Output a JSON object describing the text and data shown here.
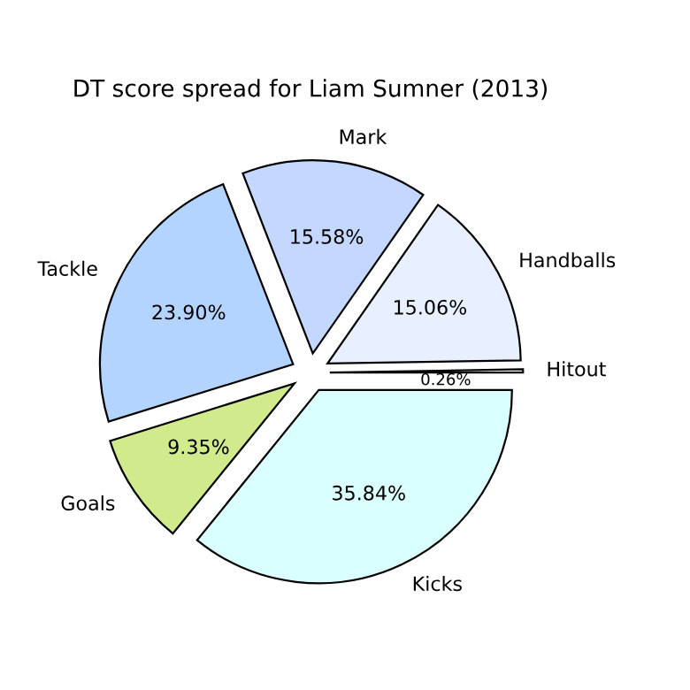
{
  "chart_data": {
    "type": "pie",
    "title": "DT score spread for Liam Sumner (2013)",
    "categories": [
      "Hitout",
      "Handballs",
      "Mark",
      "Tackle",
      "Goals",
      "Kicks"
    ],
    "values": [
      0.26,
      15.06,
      15.58,
      23.9,
      9.35,
      35.84
    ],
    "colors": [
      "#ffffff",
      "#e8f0ff",
      "#c4d8ff",
      "#b3d4ff",
      "#d0ea8c",
      "#daffff"
    ],
    "value_labels": [
      "0.26%",
      "15.06%",
      "15.58%",
      "23.90%",
      "9.35%",
      "35.84%"
    ]
  }
}
